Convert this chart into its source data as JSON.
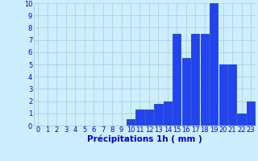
{
  "categories": [
    0,
    1,
    2,
    3,
    4,
    5,
    6,
    7,
    8,
    9,
    10,
    11,
    12,
    13,
    14,
    15,
    16,
    17,
    18,
    19,
    20,
    21,
    22,
    23
  ],
  "values": [
    0,
    0,
    0,
    0,
    0,
    0,
    0,
    0,
    0,
    0,
    0.5,
    1.3,
    1.3,
    1.8,
    2.0,
    7.5,
    5.5,
    7.5,
    7.5,
    10.0,
    5.0,
    5.0,
    1.0,
    2.0
  ],
  "bar_color": "#2244ee",
  "bar_edge_color": "#1133cc",
  "bg_color": "#cceeff",
  "grid_color": "#aacccc",
  "xlabel": "Précipitations 1h ( mm )",
  "xlabel_color": "#0000cc",
  "tick_color": "#0000cc",
  "xlabel_fontsize": 7.5,
  "tick_fontsize": 6.0,
  "ylim": [
    0,
    10
  ],
  "yticks": [
    0,
    1,
    2,
    3,
    4,
    5,
    6,
    7,
    8,
    9,
    10
  ]
}
